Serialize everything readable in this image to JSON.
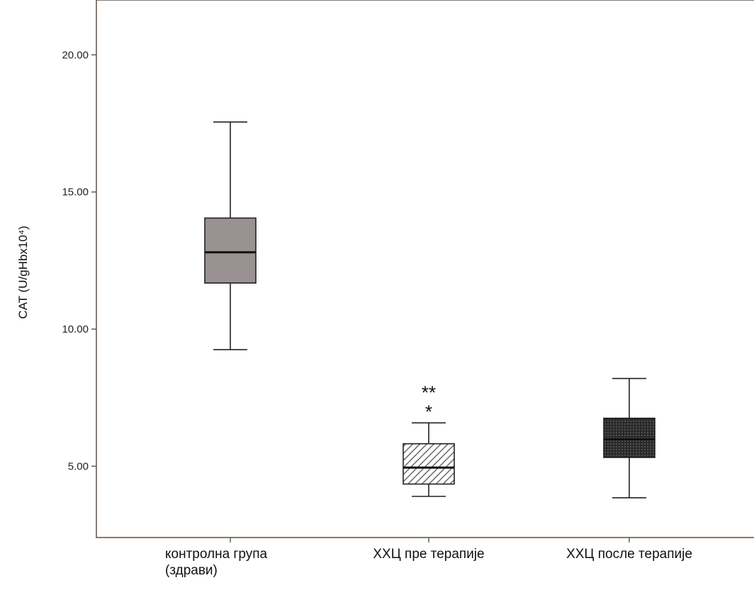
{
  "chart_data": {
    "type": "boxplot",
    "title": "",
    "xlabel": "",
    "ylabel": "CAT (U/gHbx10⁴)",
    "ylim": [
      2.4,
      22.0
    ],
    "yticks": [
      5.0,
      10.0,
      15.0,
      20.0
    ],
    "ytick_labels": [
      "5.00",
      "10.00",
      "15.00",
      "20.00"
    ],
    "grid": false,
    "legend": "none",
    "categories": [
      {
        "label_lines": [
          "контролна група",
          "(здрави)"
        ]
      },
      {
        "label_lines": [
          "ХХЦ пре терапије"
        ]
      },
      {
        "label_lines": [
          "ХХЦ после терапије"
        ]
      }
    ],
    "boxes": [
      {
        "whisker_low": 9.25,
        "q1": 11.68,
        "median": 12.8,
        "q3": 14.05,
        "whisker_high": 17.55,
        "fill": "solid",
        "color": "#9a9292",
        "outliers": []
      },
      {
        "whisker_low": 3.9,
        "q1": 4.35,
        "median": 4.95,
        "q3": 5.82,
        "whisker_high": 6.58,
        "fill": "diagonal-hatch",
        "color": "#555555",
        "outliers": [
          {
            "value": 7.2,
            "marker": "*"
          },
          {
            "value": 7.9,
            "marker": "**"
          }
        ]
      },
      {
        "whisker_low": 3.85,
        "q1": 5.32,
        "median": 5.98,
        "q3": 6.75,
        "whisker_high": 8.2,
        "fill": "dotted",
        "color": "#2a2a2a",
        "outliers": []
      }
    ]
  }
}
